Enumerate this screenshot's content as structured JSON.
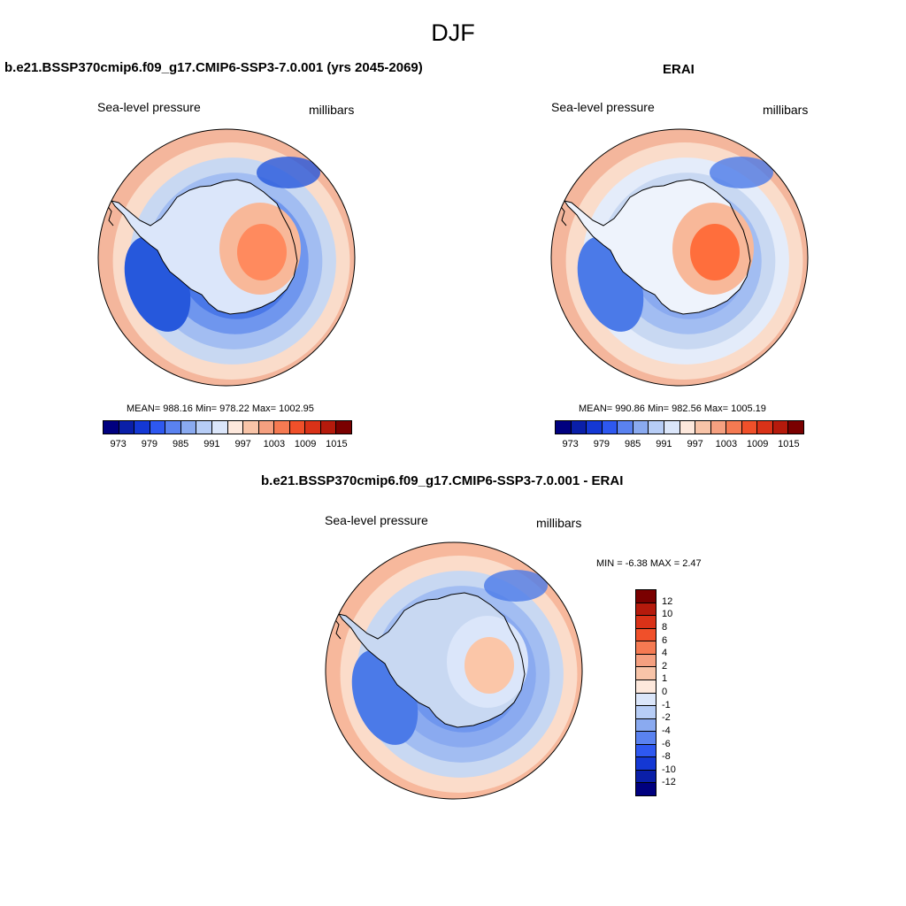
{
  "figure": {
    "title": "DJF"
  },
  "panels": [
    {
      "title": "b.e21.BSSP370cmip6.f09_g17.CMIP6-SSP3-7.0.001 (yrs 2045-2069)",
      "left_label": "Sea-level pressure",
      "right_label": "millibars",
      "stats": "MEAN= 988.16  Min= 978.22  Max= 1002.95",
      "field": {
        "ring_colors": [
          "#f4b69c",
          "#fadcca",
          "#c8d8f2",
          "#a2bdf2",
          "#6f96ee",
          "#4a78e8",
          "#3f6ee6",
          "#4b7ae8"
        ],
        "low_color": "#2658dc",
        "high_inner": "#ff8a5e",
        "high_outer": "#f8b899",
        "shelf": "#dbe6fa"
      }
    },
    {
      "title": "ERAI",
      "left_label": "Sea-level pressure",
      "right_label": "millibars",
      "stats": "MEAN= 990.86  Min= 982.56  Max= 1005.19",
      "field": {
        "ring_colors": [
          "#f4b69c",
          "#fadcca",
          "#e4ecfa",
          "#c8d8f2",
          "#a2bdf2",
          "#8aaaf0",
          "#6f96ee",
          "#8aaaf0"
        ],
        "low_color": "#4b7ae8",
        "high_inner": "#ff6e3c",
        "high_outer": "#f8b899",
        "shelf": "#eef3fc"
      }
    }
  ],
  "diff_panel": {
    "title": "b.e21.BSSP370cmip6.f09_g17.CMIP6-SSP3-7.0.001 - ERAI",
    "left_label": "Sea-level pressure",
    "right_label": "millibars",
    "stats": "MIN =  -6.38 MAX =   2.47",
    "field": {
      "ring_colors": [
        "#f7b89c",
        "#fbdcca",
        "#c8d8f2",
        "#a2bdf2",
        "#8aaaf0",
        "#6f96ee",
        "#8aaaf0",
        "#8aaaf0"
      ],
      "low_color": "#4b7ae8",
      "high_inner": "#fbc6a8",
      "high_outer": "#dbe6fa",
      "shelf": "#c8d8f2"
    }
  },
  "abs_colorbar": {
    "labels": [
      "973",
      "979",
      "985",
      "991",
      "997",
      "1003",
      "1009",
      "1015"
    ],
    "colors": [
      "#00007f",
      "#0a1fa8",
      "#1438d4",
      "#2e58f0",
      "#5a82f0",
      "#8aaaf0",
      "#b7cdf6",
      "#dbe6fa",
      "#fde8dc",
      "#f8c4a8",
      "#f5a080",
      "#f57a52",
      "#f0502a",
      "#d93218",
      "#b51a0c",
      "#7a0000"
    ]
  },
  "diff_colorbar": {
    "labels": [
      "12",
      "10",
      "8",
      "6",
      "4",
      "2",
      "1",
      "0",
      "-1",
      "-2",
      "-4",
      "-6",
      "-8",
      "-10",
      "-12"
    ],
    "colors": [
      "#7a0000",
      "#b51a0c",
      "#d93218",
      "#f0502a",
      "#f57a52",
      "#f5a080",
      "#f8c4a8",
      "#fde8dc",
      "#dbe6fa",
      "#b7cdf6",
      "#8aaaf0",
      "#5a82f0",
      "#2e58f0",
      "#1438d4",
      "#0a1fa8",
      "#00007f"
    ]
  }
}
